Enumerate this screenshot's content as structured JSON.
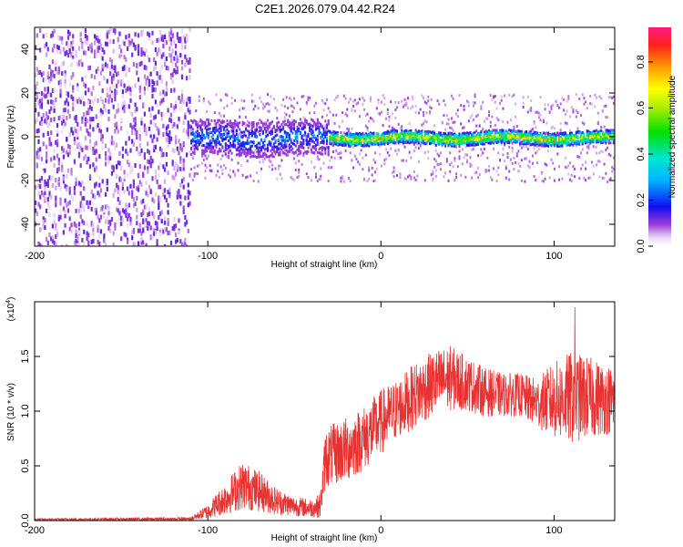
{
  "title": "C2E1.2026.079.04.42.R24",
  "chart_data": [
    {
      "type": "heatmap",
      "name": "spectrogram",
      "xlabel": "Height of straight line (km)",
      "ylabel": "Frequency (Hz)",
      "xlim": [
        -200,
        135
      ],
      "ylim": [
        -50,
        50
      ],
      "xticks": [
        -200,
        -100,
        0,
        100
      ],
      "yticks": [
        -40,
        -20,
        0,
        20,
        40
      ],
      "colorbar": {
        "label": "Normalized spectral amplitude",
        "range": [
          0,
          0.95
        ],
        "ticks": [
          0.0,
          0.2,
          0.4,
          0.6,
          0.8
        ]
      },
      "regions": [
        {
          "from_km": -200,
          "to_km": -110,
          "description": "broadband noise",
          "freq_spread_hz": 50,
          "amplitude": 0.08
        },
        {
          "from_km": -110,
          "to_km": -30,
          "description": "signal emerging near 0 Hz",
          "freq_spread_hz": 8,
          "amplitude": 0.2
        },
        {
          "from_km": -30,
          "to_km": 135,
          "description": "strong narrow signal near 0 Hz",
          "freq_spread_hz": 3,
          "amplitude": 0.55
        }
      ]
    },
    {
      "type": "line",
      "name": "snr",
      "xlabel": "Height of straight line (km)",
      "ylabel": "SNR (10 * v/v)",
      "y_scale_label": "(x10",
      "y_scale_exponent": "4",
      "y_scale_suffix": ")",
      "xlim": [
        -200,
        135
      ],
      "ylim": [
        0,
        2.0
      ],
      "xticks": [
        -200,
        -100,
        0,
        100
      ],
      "yticks": [
        0.0,
        0.5,
        1.0,
        1.5
      ],
      "color": "#e83232",
      "envelope": [
        {
          "x": -200,
          "low": 0.0,
          "high": 0.02
        },
        {
          "x": -110,
          "low": 0.0,
          "high": 0.03
        },
        {
          "x": -100,
          "low": 0.02,
          "high": 0.15
        },
        {
          "x": -90,
          "low": 0.05,
          "high": 0.35
        },
        {
          "x": -80,
          "low": 0.1,
          "high": 0.55
        },
        {
          "x": -70,
          "low": 0.08,
          "high": 0.45
        },
        {
          "x": -60,
          "low": 0.05,
          "high": 0.3
        },
        {
          "x": -50,
          "low": 0.04,
          "high": 0.22
        },
        {
          "x": -40,
          "low": 0.03,
          "high": 0.2
        },
        {
          "x": -35,
          "low": 0.02,
          "high": 0.25
        },
        {
          "x": -32,
          "low": 0.3,
          "high": 0.85
        },
        {
          "x": -20,
          "low": 0.35,
          "high": 0.95
        },
        {
          "x": -10,
          "low": 0.45,
          "high": 1.05
        },
        {
          "x": 0,
          "low": 0.6,
          "high": 1.2
        },
        {
          "x": 10,
          "low": 0.75,
          "high": 1.3
        },
        {
          "x": 20,
          "low": 0.85,
          "high": 1.45
        },
        {
          "x": 30,
          "low": 0.95,
          "high": 1.55
        },
        {
          "x": 40,
          "low": 1.0,
          "high": 1.6
        },
        {
          "x": 50,
          "low": 1.0,
          "high": 1.5
        },
        {
          "x": 60,
          "low": 0.95,
          "high": 1.4
        },
        {
          "x": 70,
          "low": 0.95,
          "high": 1.35
        },
        {
          "x": 80,
          "low": 0.95,
          "high": 1.35
        },
        {
          "x": 90,
          "low": 0.85,
          "high": 1.3
        },
        {
          "x": 100,
          "low": 0.75,
          "high": 1.45
        },
        {
          "x": 110,
          "low": 0.7,
          "high": 1.55
        },
        {
          "x": 120,
          "low": 0.75,
          "high": 1.5
        },
        {
          "x": 135,
          "low": 0.8,
          "high": 1.4
        }
      ],
      "peak": {
        "x": 112,
        "y": 1.95
      }
    }
  ]
}
